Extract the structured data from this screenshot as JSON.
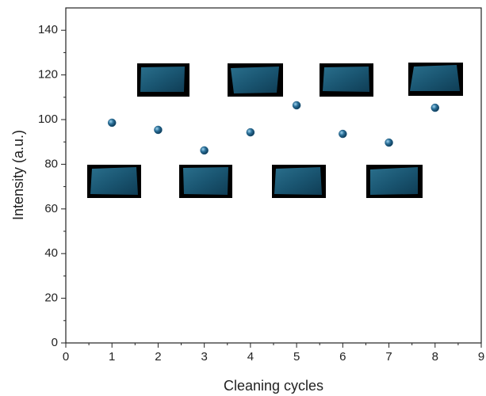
{
  "chart_data": {
    "type": "scatter",
    "x_label": "Cleaning cycles",
    "y_label": "Intensity (a.u.)",
    "x": [
      1,
      2,
      3,
      4,
      5,
      6,
      7,
      8
    ],
    "values": [
      98.6,
      95.4,
      86.2,
      94.3,
      106.4,
      93.6,
      89.7,
      105.3
    ],
    "color": "#1d5a80",
    "xlim": [
      0,
      9
    ],
    "xticks": [
      0,
      1,
      2,
      3,
      4,
      5,
      6,
      7,
      8,
      9
    ],
    "ylim": [
      0,
      150
    ],
    "yticks": [
      0,
      20,
      40,
      60,
      80,
      100,
      120,
      140
    ]
  }
}
